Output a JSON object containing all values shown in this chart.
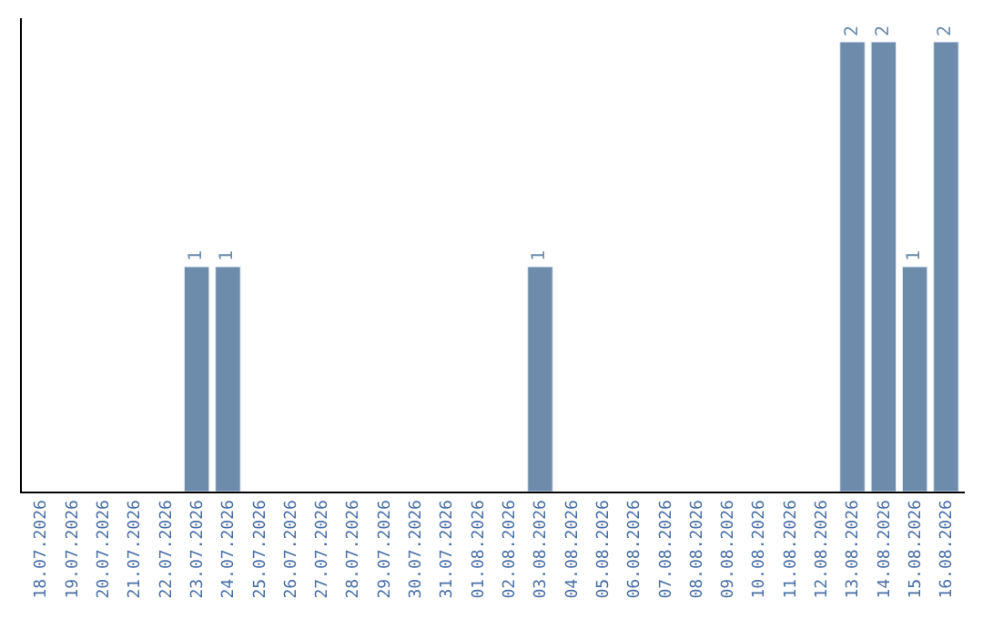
{
  "chart_data": {
    "type": "bar",
    "categories": [
      "18.07.2026",
      "19.07.2026",
      "20.07.2026",
      "21.07.2026",
      "22.07.2026",
      "23.07.2026",
      "24.07.2026",
      "25.07.2026",
      "26.07.2026",
      "27.07.2026",
      "28.07.2026",
      "29.07.2026",
      "30.07.2026",
      "31.07.2026",
      "01.08.2026",
      "02.08.2026",
      "03.08.2026",
      "04.08.2026",
      "05.08.2026",
      "06.08.2026",
      "07.08.2026",
      "08.08.2026",
      "09.08.2026",
      "10.08.2026",
      "11.08.2026",
      "12.08.2026",
      "13.08.2026",
      "14.08.2026",
      "15.08.2026",
      "16.08.2026"
    ],
    "values": [
      null,
      null,
      null,
      null,
      null,
      1,
      1,
      null,
      null,
      null,
      null,
      null,
      null,
      null,
      null,
      null,
      1,
      null,
      null,
      null,
      null,
      null,
      null,
      null,
      null,
      null,
      2,
      2,
      1,
      2
    ],
    "color": "#6d8cab",
    "data_labels": true,
    "tick_labels": "x"
  }
}
